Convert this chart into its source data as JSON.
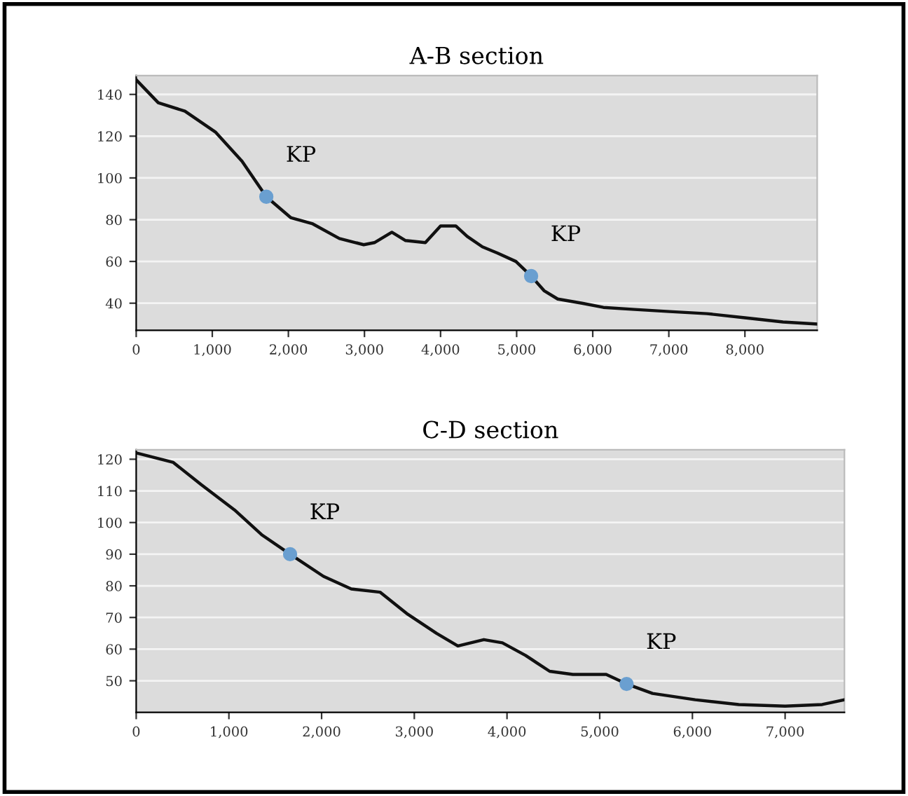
{
  "chart_data": [
    {
      "type": "line",
      "title": "A-B section",
      "xlim": [
        0,
        8950
      ],
      "xticks": [
        0,
        {
          "value": 1000,
          "label": "1,000"
        },
        {
          "value": 2000,
          "label": "2,000"
        },
        {
          "value": 3000,
          "label": "3,000"
        },
        {
          "value": 4000,
          "label": "4,000"
        },
        {
          "value": 5000,
          "label": "5,000"
        },
        {
          "value": 6000,
          "label": "6,000"
        },
        {
          "value": 7000,
          "label": "7,000"
        },
        {
          "value": 8000,
          "label": "8,000"
        }
      ],
      "ylim": [
        27,
        149
      ],
      "yticks": [
        40,
        60,
        80,
        100,
        120,
        140
      ],
      "grid": "y",
      "legend": false,
      "series": [
        {
          "color": "#111111",
          "marker": "none",
          "line_style": "solid",
          "x": [
            0,
            290,
            640,
            1040,
            1390,
            1710,
            2030,
            2320,
            2670,
            2990,
            3130,
            3360,
            3540,
            3800,
            4000,
            4200,
            4350,
            4550,
            4750,
            4990,
            5190,
            5360,
            5540,
            5860,
            6140,
            6550,
            7010,
            7500,
            8000,
            8500,
            8950
          ],
          "values": [
            147,
            136,
            132,
            122,
            108,
            91,
            81,
            78,
            71,
            68,
            69,
            74,
            70,
            69,
            77,
            77,
            72,
            67,
            64,
            60,
            53,
            46,
            42,
            40,
            38,
            37,
            36,
            35,
            33,
            31,
            30
          ]
        },
        {
          "type": "scatter",
          "color": "#6a9fd0",
          "marker": "circle",
          "x": [
            1710,
            5190
          ],
          "values": [
            91,
            53
          ]
        }
      ],
      "annotations": [
        {
          "text": "KP",
          "x": 1710,
          "y": 91
        },
        {
          "text": "KP",
          "x": 5190,
          "y": 53
        }
      ]
    },
    {
      "type": "line",
      "title": "C-D section",
      "xlim": [
        0,
        7640
      ],
      "xticks": [
        0,
        {
          "value": 1000,
          "label": "1,000"
        },
        {
          "value": 2000,
          "label": "2,000"
        },
        {
          "value": 3000,
          "label": "3,000"
        },
        {
          "value": 4000,
          "label": "4,000"
        },
        {
          "value": 5000,
          "label": "5,000"
        },
        {
          "value": 6000,
          "label": "6,000"
        },
        {
          "value": 7000,
          "label": "7,000"
        }
      ],
      "ylim": [
        40,
        123
      ],
      "yticks": [
        50,
        60,
        70,
        80,
        90,
        100,
        110,
        120
      ],
      "grid": "y",
      "legend": false,
      "series": [
        {
          "color": "#111111",
          "marker": "none",
          "line_style": "solid",
          "x": [
            0,
            400,
            700,
            1060,
            1360,
            1660,
            2020,
            2320,
            2630,
            2930,
            3240,
            3470,
            3750,
            3950,
            4200,
            4460,
            4710,
            5070,
            5290,
            5570,
            6030,
            6500,
            7000,
            7400,
            7640
          ],
          "values": [
            122,
            119,
            112,
            104,
            96,
            90,
            83,
            79,
            78,
            71,
            65,
            61,
            63,
            62,
            58,
            53,
            52,
            52,
            49,
            46,
            44,
            42.5,
            42,
            42.5,
            44
          ]
        },
        {
          "type": "scatter",
          "color": "#6a9fd0",
          "marker": "circle",
          "x": [
            1660,
            5290
          ],
          "values": [
            90,
            49
          ]
        }
      ],
      "annotations": [
        {
          "text": "KP",
          "x": 1660,
          "y": 90
        },
        {
          "text": "KP",
          "x": 5290,
          "y": 49
        }
      ]
    }
  ]
}
